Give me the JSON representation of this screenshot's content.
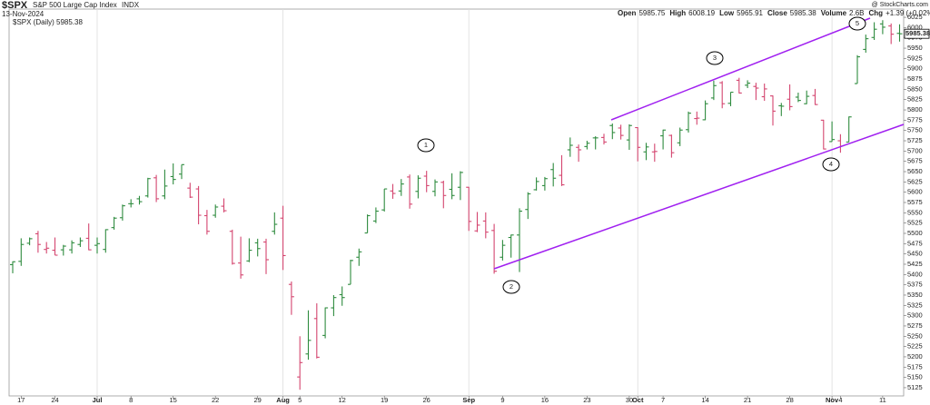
{
  "chart_data": {
    "type": "ohlc",
    "symbol": "$SPX",
    "name": "S&P 500 Large Cap Index",
    "exchange": "INDX",
    "date": "13-Nov-2024",
    "credit": "@ StockCharts.com",
    "header": [
      [
        "Open",
        "5985.75"
      ],
      [
        "High",
        "6008.19"
      ],
      [
        "Low",
        "5965.91"
      ],
      [
        "Close",
        "5985.38"
      ],
      [
        "Volume",
        "2.6B"
      ],
      [
        "Chg",
        "+1.39 (+0.02%)"
      ]
    ],
    "legend": "$SPX (Daily) 5985.38",
    "last_price_label": "5985.38",
    "annotations": [
      "1",
      "2",
      "3",
      "4",
      "5"
    ],
    "up_color": "#2e8b3e",
    "down_color": "#d4456f",
    "trendline_color": "#a020f0",
    "categories": [
      null,
      "17",
      null,
      null,
      null,
      "24",
      null,
      null,
      null,
      null,
      "Jul",
      null,
      null,
      null,
      "8",
      null,
      null,
      null,
      null,
      "15",
      null,
      null,
      null,
      null,
      "22",
      null,
      null,
      null,
      null,
      "29",
      null,
      null,
      "Aug",
      null,
      "5",
      null,
      null,
      null,
      null,
      "12",
      null,
      null,
      null,
      null,
      "19",
      null,
      null,
      null,
      null,
      "26",
      null,
      null,
      null,
      null,
      "Sep",
      null,
      null,
      null,
      "9",
      null,
      null,
      null,
      null,
      "16",
      null,
      null,
      null,
      null,
      "23",
      null,
      null,
      null,
      null,
      "30",
      "Oct",
      null,
      null,
      "7",
      null,
      null,
      null,
      null,
      "14",
      null,
      null,
      null,
      null,
      "21",
      null,
      null,
      null,
      null,
      "28",
      null,
      null,
      null,
      null,
      "Nov",
      "4",
      null,
      null,
      null,
      null,
      "11",
      null,
      null
    ],
    "open": [
      5424,
      5432,
      5476,
      5499,
      5461,
      5459,
      5460,
      5460,
      5473,
      5488,
      5471,
      5461,
      5514,
      5538,
      5572,
      5584,
      5591,
      5635,
      5591,
      5638,
      5644,
      5610,
      5608,
      5543,
      5544,
      5566,
      5505,
      5428,
      5433,
      5477,
      5479,
      5505,
      5537,
      5376,
      5151,
      5207,
      5293,
      5252,
      5319,
      5351,
      5376,
      5442,
      5501,
      5530,
      5557,
      5603,
      5603,
      5637,
      5602,
      5639,
      5602,
      5624,
      5607,
      5612,
      5612,
      5506,
      5530,
      5507,
      5442,
      5490,
      5496,
      5558,
      5606,
      5616,
      5655,
      5641,
      5703,
      5709,
      5711,
      5732,
      5733,
      5762,
      5756,
      5727,
      5757,
      5698,
      5698,
      5737,
      5738,
      5720,
      5752,
      5779,
      5776,
      5829,
      5866,
      5816,
      5872,
      5860,
      5857,
      5832,
      5834,
      5810,
      5826,
      5831,
      5815,
      5835,
      5775,
      5723,
      5725,
      5722,
      5864,
      5947,
      5976,
      6009,
      6004,
      5986
    ],
    "high": [
      5432,
      5488,
      5490,
      5506,
      5479,
      5490,
      5472,
      5483,
      5490,
      5524,
      5490,
      5510,
      5540,
      5570,
      5583,
      5591,
      5635,
      5642,
      5655,
      5670,
      5667,
      5623,
      5615,
      5557,
      5570,
      5585,
      5509,
      5492,
      5488,
      5487,
      5487,
      5551,
      5567,
      5383,
      5250,
      5313,
      5330,
      5320,
      5350,
      5371,
      5436,
      5463,
      5546,
      5563,
      5608,
      5620,
      5632,
      5643,
      5641,
      5652,
      5631,
      5628,
      5646,
      5651,
      5613,
      5552,
      5551,
      5523,
      5484,
      5497,
      5561,
      5600,
      5636,
      5637,
      5671,
      5690,
      5733,
      5716,
      5725,
      5736,
      5742,
      5767,
      5764,
      5765,
      5758,
      5720,
      5718,
      5752,
      5740,
      5757,
      5796,
      5796,
      5823,
      5871,
      5870,
      5843,
      5878,
      5872,
      5866,
      5864,
      5835,
      5817,
      5862,
      5842,
      5847,
      5851,
      5776,
      5772,
      5741,
      5784,
      5933,
      5983,
      6013,
      6018,
      6010,
      6008
    ],
    "low": [
      5403,
      5421,
      5471,
      5453,
      5451,
      5447,
      5446,
      5451,
      5467,
      5459,
      5451,
      5453,
      5509,
      5531,
      5563,
      5570,
      5587,
      5576,
      5583,
      5619,
      5632,
      5586,
      5522,
      5497,
      5538,
      5551,
      5424,
      5390,
      5430,
      5444,
      5401,
      5497,
      5411,
      5302,
      5120,
      5193,
      5196,
      5245,
      5299,
      5324,
      5376,
      5421,
      5501,
      5525,
      5553,
      5584,
      5591,
      5560,
      5585,
      5600,
      5590,
      5561,
      5583,
      5581,
      5506,
      5503,
      5488,
      5402,
      5434,
      5441,
      5406,
      5535,
      5604,
      5604,
      5614,
      5615,
      5686,
      5674,
      5704,
      5704,
      5716,
      5729,
      5728,
      5703,
      5675,
      5678,
      5674,
      5704,
      5684,
      5712,
      5745,
      5764,
      5775,
      5824,
      5804,
      5809,
      5840,
      5853,
      5824,
      5822,
      5762,
      5785,
      5799,
      5819,
      5814,
      5812,
      5704,
      5723,
      5696,
      5722,
      5864,
      5939,
      5970,
      5984,
      5960,
      5966
    ],
    "close": [
      5431,
      5473,
      5487,
      5473,
      5464,
      5447,
      5469,
      5477,
      5482,
      5460,
      5475,
      5509,
      5537,
      5567,
      5572,
      5577,
      5633,
      5584,
      5615,
      5631,
      5667,
      5588,
      5544,
      5505,
      5564,
      5555,
      5427,
      5399,
      5459,
      5463,
      5436,
      5522,
      5446,
      5346,
      5186,
      5240,
      5199,
      5319,
      5344,
      5344,
      5434,
      5455,
      5543,
      5554,
      5608,
      5597,
      5620,
      5571,
      5634,
      5616,
      5625,
      5592,
      5592,
      5648,
      5529,
      5520,
      5503,
      5408,
      5471,
      5496,
      5554,
      5596,
      5626,
      5633,
      5634,
      5618,
      5714,
      5703,
      5719,
      5732,
      5722,
      5745,
      5738,
      5762,
      5709,
      5710,
      5699,
      5751,
      5696,
      5751,
      5792,
      5780,
      5815,
      5859,
      5815,
      5843,
      5841,
      5865,
      5853,
      5851,
      5797,
      5809,
      5808,
      5823,
      5833,
      5813,
      5705,
      5728,
      5712,
      5783,
      5929,
      5973,
      5996,
      6001,
      5984,
      5985
    ],
    "ylim": [
      5105,
      6045
    ],
    "yticks": [
      5125,
      5150,
      5175,
      5200,
      5225,
      5250,
      5275,
      5300,
      5325,
      5350,
      5375,
      5400,
      5425,
      5450,
      5475,
      5500,
      5525,
      5550,
      5575,
      5600,
      5625,
      5650,
      5675,
      5700,
      5725,
      5750,
      5775,
      5800,
      5825,
      5850,
      5875,
      5900,
      5925,
      5950,
      5975,
      6000,
      6025
    ]
  }
}
